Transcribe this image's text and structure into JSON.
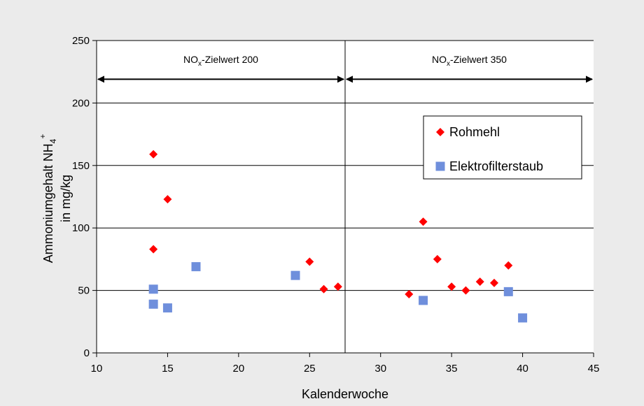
{
  "chart_data": {
    "type": "scatter",
    "title": "",
    "xlabel": "Kalenderwoche",
    "ylabel_line1": "Ammoniumgehalt NH",
    "ylabel_sub": "4",
    "ylabel_sup": "+",
    "ylabel_line2": "in mg/kg",
    "xlim": [
      10,
      45
    ],
    "ylim": [
      0,
      250
    ],
    "xticks": [
      10,
      15,
      20,
      25,
      30,
      35,
      40,
      45
    ],
    "yticks": [
      0,
      50,
      100,
      150,
      200,
      250
    ],
    "grid": "horizontal",
    "divider_x": 27.5,
    "legend_position": "right",
    "series": [
      {
        "name": "Rohmehl",
        "marker": "diamond",
        "color": "#ff0000",
        "points": [
          {
            "x": 14,
            "y": 159
          },
          {
            "x": 14,
            "y": 83
          },
          {
            "x": 15,
            "y": 123
          },
          {
            "x": 25,
            "y": 73
          },
          {
            "x": 26,
            "y": 51
          },
          {
            "x": 27,
            "y": 53
          },
          {
            "x": 32,
            "y": 47
          },
          {
            "x": 33,
            "y": 105
          },
          {
            "x": 34,
            "y": 75
          },
          {
            "x": 35,
            "y": 53
          },
          {
            "x": 36,
            "y": 50
          },
          {
            "x": 37,
            "y": 57
          },
          {
            "x": 38,
            "y": 56
          },
          {
            "x": 39,
            "y": 70
          }
        ]
      },
      {
        "name": "Elektrofilterstaub",
        "marker": "square",
        "color": "#6f8fdc",
        "points": [
          {
            "x": 14,
            "y": 51
          },
          {
            "x": 14,
            "y": 39
          },
          {
            "x": 15,
            "y": 36
          },
          {
            "x": 17,
            "y": 69
          },
          {
            "x": 24,
            "y": 62
          },
          {
            "x": 33,
            "y": 42
          },
          {
            "x": 39,
            "y": 49
          },
          {
            "x": 40,
            "y": 28
          }
        ]
      }
    ],
    "annotations": [
      {
        "prefix": "NO",
        "sub": "x",
        "text": "-Zielwert 200",
        "x_start": 10,
        "x_end": 27.5,
        "y": 219
      },
      {
        "prefix": "NO",
        "sub": "x",
        "text": "-Zielwert 350",
        "x_start": 27.5,
        "x_end": 45,
        "y": 219
      }
    ]
  }
}
